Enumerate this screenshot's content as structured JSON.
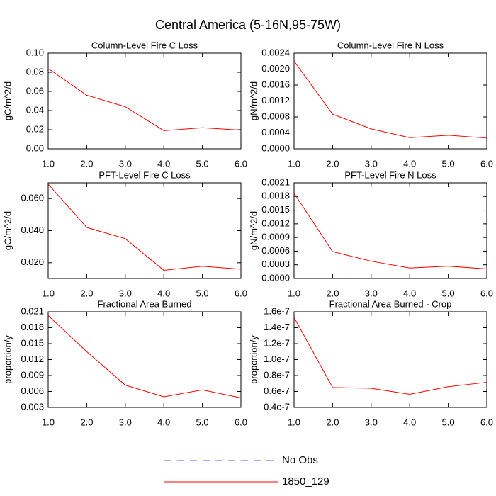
{
  "title": "Central America (5-16N,95-75W)",
  "legend": [
    {
      "name": "No Obs",
      "color": "#5a5ad0",
      "dash": true
    },
    {
      "name": "1850_129",
      "color": "#ff0000",
      "dash": false
    }
  ],
  "chart_data": [
    {
      "type": "line",
      "title": "Column-Level Fire C Loss",
      "y_label": "gC/m^2/d",
      "x": [
        1,
        2,
        3,
        4,
        5,
        6
      ],
      "xlim": [
        1,
        6
      ],
      "xticks": [
        {
          "value": 1,
          "label": "1.0"
        },
        {
          "value": 2,
          "label": "2.0"
        },
        {
          "value": 3,
          "label": "3.0"
        },
        {
          "value": 4,
          "label": "4.0"
        },
        {
          "value": 5,
          "label": "5.0"
        },
        {
          "value": 6,
          "label": "6.0"
        }
      ],
      "ylim": [
        0,
        0.1
      ],
      "yticks": [
        {
          "value": 0,
          "label": "0.00"
        },
        {
          "value": 0.02,
          "label": "0.02"
        },
        {
          "value": 0.04,
          "label": "0.04"
        },
        {
          "value": 0.06,
          "label": "0.06"
        },
        {
          "value": 0.08,
          "label": "0.08"
        },
        {
          "value": 0.1,
          "label": "0.10"
        }
      ],
      "series": [
        {
          "color": "#ff0000",
          "values": [
            0.084,
            0.056,
            0.044,
            0.019,
            0.022,
            0.0195
          ]
        }
      ]
    },
    {
      "type": "line",
      "title": "Column-Level Fire N Loss",
      "y_label": "gN/m^2/d",
      "x": [
        1,
        2,
        3,
        4,
        5,
        6
      ],
      "xlim": [
        1,
        6
      ],
      "xticks": [
        {
          "value": 1,
          "label": "1.0"
        },
        {
          "value": 2,
          "label": "2.0"
        },
        {
          "value": 3,
          "label": "3.0"
        },
        {
          "value": 4,
          "label": "4.0"
        },
        {
          "value": 5,
          "label": "5.0"
        },
        {
          "value": 6,
          "label": "6.0"
        }
      ],
      "ylim": [
        0,
        0.0024
      ],
      "yticks": [
        {
          "value": 0,
          "label": "0.0000"
        },
        {
          "value": 0.0004,
          "label": "0.0004"
        },
        {
          "value": 0.0008,
          "label": "0.0008"
        },
        {
          "value": 0.0012,
          "label": "0.0012"
        },
        {
          "value": 0.0016,
          "label": "0.0016"
        },
        {
          "value": 0.002,
          "label": "0.0020"
        },
        {
          "value": 0.0024,
          "label": "0.0024"
        }
      ],
      "series": [
        {
          "color": "#ff0000",
          "values": [
            0.0022,
            0.00087,
            0.0005,
            0.00028,
            0.00034,
            0.00027
          ]
        }
      ]
    },
    {
      "type": "line",
      "title": "PFT-Level Fire C Loss",
      "y_label": "gC/m^2/d",
      "x": [
        1,
        2,
        3,
        4,
        5,
        6
      ],
      "xlim": [
        1,
        6
      ],
      "xticks": [
        {
          "value": 1,
          "label": "1.0"
        },
        {
          "value": 2,
          "label": "2.0"
        },
        {
          "value": 3,
          "label": "3.0"
        },
        {
          "value": 4,
          "label": "4.0"
        },
        {
          "value": 5,
          "label": "5.0"
        },
        {
          "value": 6,
          "label": "6.0"
        }
      ],
      "ylim": [
        0.0102,
        0.0698
      ],
      "yticks": [
        {
          "value": 0.02,
          "label": "0.020"
        },
        {
          "value": 0.04,
          "label": "0.040"
        },
        {
          "value": 0.06,
          "label": "0.060"
        }
      ],
      "series": [
        {
          "color": "#ff0000",
          "values": [
            0.069,
            0.042,
            0.035,
            0.0153,
            0.0178,
            0.016
          ]
        }
      ]
    },
    {
      "type": "line",
      "title": "PFT-Level Fire N Loss",
      "y_label": "gN/m^2/d",
      "x": [
        1,
        2,
        3,
        4,
        5,
        6
      ],
      "xlim": [
        1,
        6
      ],
      "xticks": [
        {
          "value": 1,
          "label": "1.0"
        },
        {
          "value": 2,
          "label": "2.0"
        },
        {
          "value": 3,
          "label": "3.0"
        },
        {
          "value": 4,
          "label": "4.0"
        },
        {
          "value": 5,
          "label": "5.0"
        },
        {
          "value": 6,
          "label": "6.0"
        }
      ],
      "ylim": [
        0,
        0.0021
      ],
      "yticks": [
        {
          "value": 0,
          "label": "0.0000"
        },
        {
          "value": 0.0003,
          "label": "0.0003"
        },
        {
          "value": 0.0006,
          "label": "0.0006"
        },
        {
          "value": 0.0009,
          "label": "0.0009"
        },
        {
          "value": 0.0012,
          "label": "0.0012"
        },
        {
          "value": 0.0015,
          "label": "0.0015"
        },
        {
          "value": 0.0018,
          "label": "0.0018"
        },
        {
          "value": 0.0021,
          "label": "0.0021"
        }
      ],
      "series": [
        {
          "color": "#ff0000",
          "values": [
            0.00187,
            0.00059,
            0.00038,
            0.00023,
            0.00027,
            0.00021
          ]
        }
      ]
    },
    {
      "type": "line",
      "title": "Fractional Area Burned",
      "y_label": "proportion/y",
      "x": [
        1,
        2,
        3,
        4,
        5,
        6
      ],
      "xlim": [
        1,
        6
      ],
      "xticks": [
        {
          "value": 1,
          "label": "1.0"
        },
        {
          "value": 2,
          "label": "2.0"
        },
        {
          "value": 3,
          "label": "3.0"
        },
        {
          "value": 4,
          "label": "4.0"
        },
        {
          "value": 5,
          "label": "5.0"
        },
        {
          "value": 6,
          "label": "6.0"
        }
      ],
      "ylim": [
        0.003,
        0.021
      ],
      "yticks": [
        0.003,
        0.006,
        0.009,
        0.012,
        0.015,
        0.018,
        0.021
      ],
      "series": [
        {
          "color": "#ff0000",
          "values": [
            0.0203,
            0.0135,
            0.0072,
            0.005,
            0.0063,
            0.0048
          ]
        }
      ]
    },
    {
      "type": "line",
      "title": "Fractional Area Burned - Crop",
      "y_label": "proportion/y",
      "x": [
        1,
        2,
        3,
        4,
        5,
        6
      ],
      "xlim": [
        1,
        6
      ],
      "xticks": [
        {
          "value": 1,
          "label": "1.0"
        },
        {
          "value": 2,
          "label": "2.0"
        },
        {
          "value": 3,
          "label": "3.0"
        },
        {
          "value": 4,
          "label": "4.0"
        },
        {
          "value": 5,
          "label": "5.0"
        },
        {
          "value": 6,
          "label": "6.0"
        }
      ],
      "ylim": [
        4e-08,
        1.6e-07
      ],
      "yticks": [
        {
          "value": 4e-08,
          "label": "0.4e-7"
        },
        {
          "value": 6e-08,
          "label": "0.6e-7"
        },
        {
          "value": 8e-08,
          "label": "0.8e-7"
        },
        {
          "value": 1e-07,
          "label": "1.0e-7"
        },
        {
          "value": 1.2e-07,
          "label": "1.2e-7"
        },
        {
          "value": 1.4e-07,
          "label": "1.4e-7"
        },
        {
          "value": 1.6e-07,
          "label": "1.6e-7"
        }
      ],
      "series": [
        {
          "color": "#ff0000",
          "values": [
            1.53e-07,
            6.5e-08,
            6.4e-08,
            5.65e-08,
            6.6e-08,
            7.15e-08
          ]
        }
      ]
    }
  ]
}
